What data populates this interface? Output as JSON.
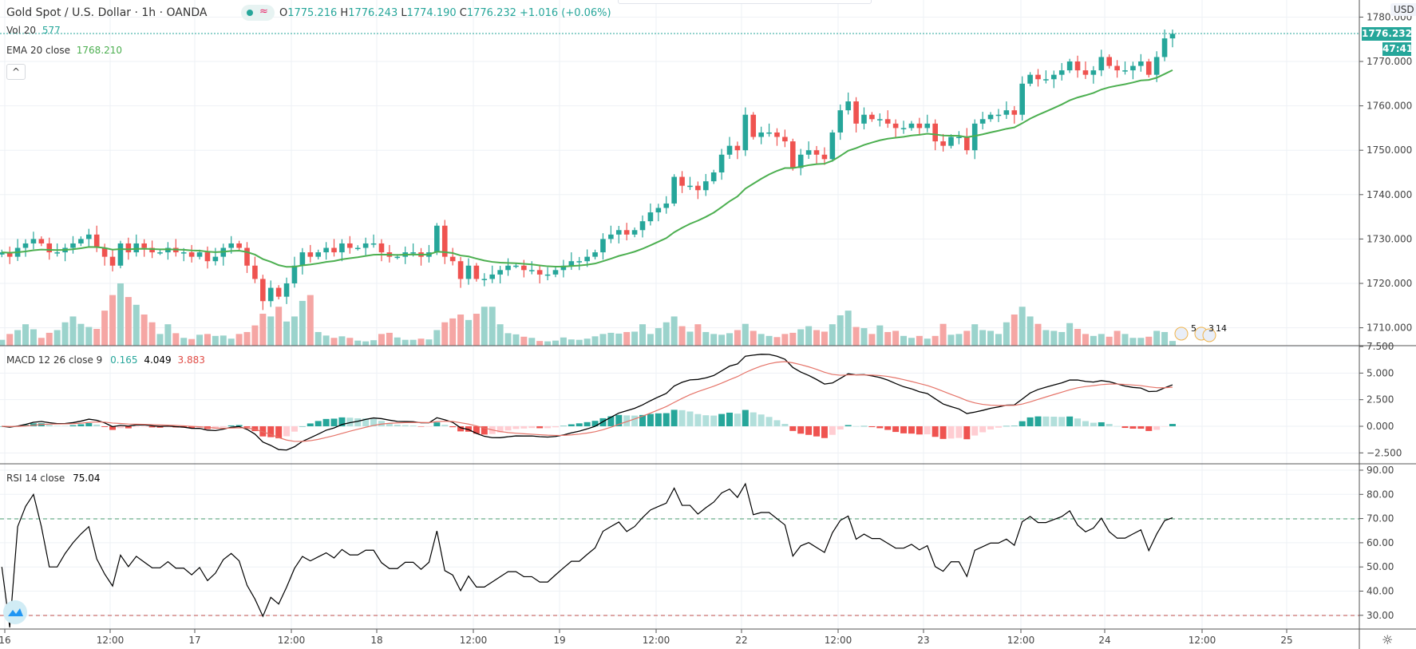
{
  "header": {
    "symbol": "Gold Spot / U.S. Dollar · 1h · OANDA",
    "open_label": "O",
    "open": "1775.216",
    "high_label": "H",
    "high": "1776.243",
    "low_label": "L",
    "low": "1774.190",
    "close_label": "C",
    "close": "1776.232",
    "change": "+1.016 (+0.06%)",
    "badge_wave": "≈"
  },
  "volume_legend": {
    "label": "Vol 20",
    "value": "577"
  },
  "ema_legend": {
    "label": "EMA 20 close",
    "value": "1768.210"
  },
  "macd_legend": {
    "label": "MACD 12 26 close 9",
    "hist": "0.165",
    "macd": "4.049",
    "signal": "3.883"
  },
  "rsi_legend": {
    "label": "RSI 14 close",
    "value": "75.04"
  },
  "collapse_icon": "^",
  "price_axis": {
    "currency": "USD",
    "ticks": [
      "1780.000",
      "1770.000",
      "1760.000",
      "1750.000",
      "1740.000",
      "1730.000",
      "1720.000",
      "1710.000"
    ],
    "last_price": "1776.232",
    "countdown": "47:41"
  },
  "macd_axis": {
    "ticks": [
      "7.500",
      "5.000",
      "2.500",
      "0.000",
      "−2.500"
    ]
  },
  "rsi_axis": {
    "ticks": [
      "90.00",
      "80.00",
      "70.00",
      "60.00",
      "50.00",
      "40.00",
      "30.00"
    ]
  },
  "time_axis": {
    "labels": [
      "16",
      "12:00",
      "17",
      "12:00",
      "18",
      "12:00",
      "19",
      "12:00",
      "22",
      "12:00",
      "23",
      "12:00",
      "24",
      "12:00",
      "25"
    ]
  },
  "events": [
    "5",
    "3",
    "14"
  ],
  "settings_icon": "☼",
  "colors": {
    "up": "#26a69a",
    "down": "#ef5350",
    "ema": "#4caf50",
    "macd": "#000000",
    "signal": "#e57368"
  },
  "chart_data": {
    "type": "candlestick",
    "title": "Gold Spot / U.S. Dollar 1h",
    "ylim": [
      1706,
      1784
    ],
    "closes": [
      1727,
      1726,
      1728,
      1729,
      1730,
      1729,
      1727,
      1727,
      1728,
      1729,
      1730,
      1731,
      1728,
      1726,
      1724,
      1729,
      1727,
      1729,
      1728,
      1727,
      1727,
      1728,
      1727,
      1727,
      1726,
      1727,
      1725,
      1726,
      1728,
      1729,
      1728,
      1724,
      1721,
      1716,
      1719,
      1717,
      1720,
      1724,
      1727,
      1726,
      1727,
      1728,
      1727,
      1729,
      1728,
      1728,
      1729,
      1729,
      1727,
      1726,
      1726,
      1727,
      1727,
      1726,
      1727,
      1733,
      1726,
      1725,
      1721,
      1724,
      1721,
      1721,
      1722,
      1723,
      1724,
      1724,
      1723,
      1723,
      1722,
      1722,
      1723,
      1724,
      1725,
      1725,
      1726,
      1727,
      1730,
      1731,
      1732,
      1731,
      1732,
      1734,
      1736,
      1737,
      1738,
      1744,
      1742,
      1742,
      1741,
      1743,
      1745,
      1749,
      1751,
      1750,
      1758,
      1753,
      1754,
      1754,
      1753,
      1752,
      1746,
      1749,
      1750,
      1749,
      1748,
      1754,
      1759,
      1761,
      1756,
      1758,
      1757,
      1757,
      1756,
      1755,
      1755,
      1756,
      1755,
      1756,
      1752,
      1751,
      1753,
      1753,
      1750,
      1756,
      1757,
      1758,
      1758,
      1759,
      1758,
      1765,
      1767,
      1766,
      1766,
      1767,
      1768,
      1770,
      1768,
      1767,
      1768,
      1771,
      1769,
      1768,
      1768,
      1769,
      1770,
      1767,
      1771,
      1775.2,
      1776.232
    ],
    "volumes": [
      150,
      300,
      400,
      550,
      420,
      200,
      330,
      400,
      600,
      750,
      560,
      480,
      430,
      900,
      1300,
      1600,
      1250,
      1050,
      800,
      600,
      300,
      550,
      320,
      200,
      170,
      280,
      300,
      250,
      260,
      180,
      300,
      350,
      520,
      820,
      750,
      1000,
      620,
      750,
      1150,
      1300,
      350,
      260,
      200,
      240,
      200,
      130,
      110,
      140,
      300,
      330,
      210,
      150,
      150,
      180,
      160,
      400,
      600,
      700,
      800,
      660,
      820,
      1000,
      1000,
      550,
      320,
      290,
      230,
      200,
      120,
      110,
      130,
      210,
      160,
      150,
      180,
      240,
      300,
      330,
      310,
      350,
      360,
      550,
      300,
      450,
      600,
      750,
      500,
      360,
      550,
      350,
      300,
      280,
      320,
      400,
      560,
      380,
      300,
      250,
      220,
      300,
      330,
      420,
      500,
      400,
      360,
      550,
      780,
      900,
      480,
      450,
      300,
      520,
      350,
      380,
      250,
      200,
      250,
      180,
      250,
      560,
      280,
      300,
      380,
      550,
      400,
      380,
      300,
      600,
      800,
      1000,
      750,
      560,
      400,
      380,
      350,
      580,
      430,
      300,
      250,
      300,
      230,
      380,
      300,
      200,
      200,
      230,
      380,
      350,
      120
    ],
    "indicators": {
      "ema_period": 20,
      "macd": [
        12,
        26,
        9
      ],
      "rsi_period": 14,
      "rsi_levels": [
        70,
        30
      ]
    }
  }
}
